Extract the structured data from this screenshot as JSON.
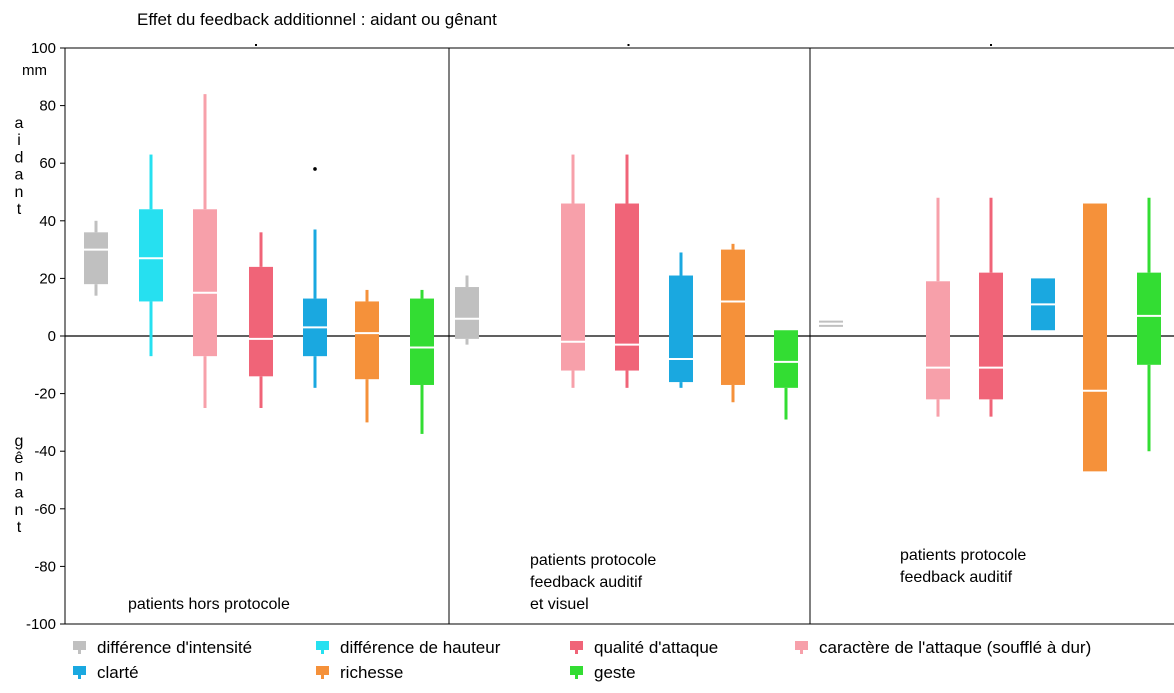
{
  "chart_data": {
    "type": "boxplot",
    "title": "Effet du feedback additionnel : aidant ou gênant",
    "ylabel_unit": "mm",
    "ylabel_top": "aidant",
    "ylabel_bottom": "gênant",
    "ylim": [
      -100,
      100
    ],
    "yticks": [
      100,
      80,
      60,
      40,
      20,
      0,
      -20,
      -40,
      -60,
      -80,
      -100
    ],
    "grid": false,
    "legend_position": "bottom",
    "series": [
      {
        "name": "différence d'intensité",
        "color": "#c0c0c0"
      },
      {
        "name": "différence de hauteur",
        "color": "#26e0f0"
      },
      {
        "name": "qualité d'attaque",
        "color": "#f06478"
      },
      {
        "name": "caractère de l'attaque (soufflé à dur)",
        "color": "#f7a0aa"
      },
      {
        "name": "clarté",
        "color": "#1aa8e0"
      },
      {
        "name": "richesse",
        "color": "#f5913a"
      },
      {
        "name": "geste",
        "color": "#33dd33"
      }
    ],
    "panels": [
      {
        "label": [
          "patients hors protocole"
        ],
        "boxes": [
          {
            "series": "différence d'intensité",
            "whisker_low": 14,
            "q1": 18,
            "median": 30,
            "q3": 36,
            "whisker_high": 40
          },
          {
            "series": "différence de hauteur",
            "whisker_low": -7,
            "q1": 12,
            "median": 27,
            "q3": 44,
            "whisker_high": 63
          },
          {
            "series": "caractère de l'attaque (soufflé à dur)",
            "whisker_low": -25,
            "q1": -7,
            "median": 15,
            "q3": 44,
            "whisker_high": 84
          },
          {
            "series": "qualité d'attaque",
            "whisker_low": -25,
            "q1": -14,
            "median": -1,
            "q3": 24,
            "whisker_high": 36
          },
          {
            "series": "clarté",
            "whisker_low": -18,
            "q1": -7,
            "median": 3,
            "q3": 13,
            "whisker_high": 37,
            "outliers": [
              58
            ]
          },
          {
            "series": "richesse",
            "whisker_low": -30,
            "q1": -15,
            "median": 1,
            "q3": 12,
            "whisker_high": 16
          },
          {
            "series": "geste",
            "whisker_low": -34,
            "q1": -17,
            "median": -4,
            "q3": 13,
            "whisker_high": 16
          }
        ]
      },
      {
        "label": [
          "patients protocole",
          "feedback auditif",
          "et visuel"
        ],
        "boxes": [
          {
            "series": "différence d'intensité",
            "whisker_low": -3,
            "q1": -1,
            "median": 6,
            "q3": 17,
            "whisker_high": 21
          },
          {
            "series": "caractère de l'attaque (soufflé à dur)",
            "whisker_low": -18,
            "q1": -12,
            "median": -2,
            "q3": 46,
            "whisker_high": 63
          },
          {
            "series": "qualité d'attaque",
            "whisker_low": -18,
            "q1": -12,
            "median": -3,
            "q3": 46,
            "whisker_high": 63
          },
          {
            "series": "clarté",
            "whisker_low": -18,
            "q1": -16,
            "median": -8,
            "q3": 21,
            "whisker_high": 29
          },
          {
            "series": "richesse",
            "whisker_low": -23,
            "q1": -17,
            "median": 12,
            "q3": 30,
            "whisker_high": 32
          },
          {
            "series": "geste",
            "whisker_low": -29,
            "q1": -18,
            "median": -9,
            "q3": 2,
            "whisker_high": 2
          }
        ]
      },
      {
        "label": [
          "patients protocole",
          "feedback auditif"
        ],
        "boxes": [
          {
            "series": "différence d'intensité",
            "whisker_low": 3.5,
            "q1": 3.5,
            "median": 5,
            "q3": 5,
            "whisker_high": 5
          },
          {
            "series": "caractère de l'attaque (soufflé à dur)",
            "whisker_low": -28,
            "q1": -22,
            "median": -11,
            "q3": 19,
            "whisker_high": 48
          },
          {
            "series": "qualité d'attaque",
            "whisker_low": -28,
            "q1": -22,
            "median": -11,
            "q3": 22,
            "whisker_high": 48
          },
          {
            "series": "clarté",
            "whisker_low": 2,
            "q1": 2,
            "median": 11,
            "q3": 20,
            "whisker_high": 20
          },
          {
            "series": "richesse",
            "whisker_low": -47,
            "q1": -47,
            "median": -19,
            "q3": 46,
            "whisker_high": 46
          },
          {
            "series": "geste",
            "whisker_low": -40,
            "q1": -10,
            "median": 7,
            "q3": 22,
            "whisker_high": 48
          }
        ]
      }
    ],
    "legend_rows": [
      [
        "différence d'intensité",
        "différence de hauteur",
        "qualité d'attaque",
        "caractère de l'attaque (soufflé à dur)"
      ],
      [
        "clarté",
        "richesse",
        "geste"
      ]
    ]
  }
}
